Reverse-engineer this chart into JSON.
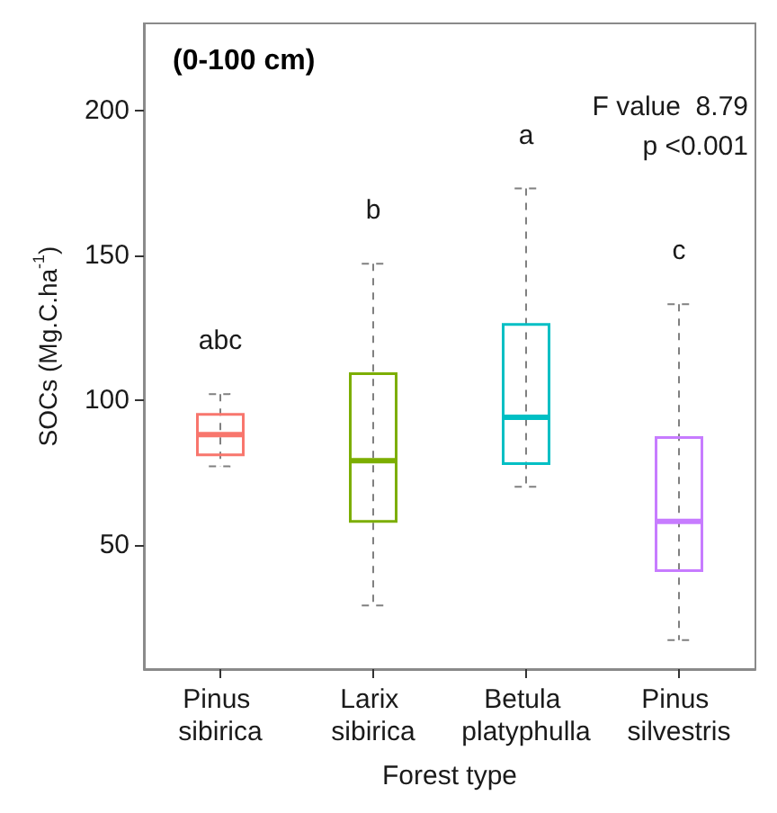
{
  "chart_data": {
    "type": "box",
    "title": "(0-100 cm)",
    "xlabel": "Forest type",
    "ylabel": "SOCs (Mg.C.ha$^{-1}$)",
    "categories": [
      "Pinus sibirica",
      "Larix sibirica",
      "Betula platyphulla",
      "Pinus silvestris"
    ],
    "colors": [
      "#f8766d",
      "#7cae00",
      "#00bfc4",
      "#c77cff"
    ],
    "boxes": [
      {
        "low": 77,
        "q1": 81,
        "median": 88,
        "q3": 95,
        "high": 102
      },
      {
        "low": 29,
        "q1": 58,
        "median": 79,
        "q3": 109,
        "high": 147
      },
      {
        "low": 70,
        "q1": 78,
        "median": 94,
        "q3": 126,
        "high": 173
      },
      {
        "low": 17,
        "q1": 41,
        "median": 58,
        "q3": 87,
        "high": 133
      }
    ],
    "ylim": [
      7,
      230
    ],
    "yticks": [
      50,
      100,
      150,
      200
    ],
    "grid": false,
    "annotations": [
      "abc",
      "b",
      "a",
      "c",
      "F value  8.79",
      "p <0.001"
    ]
  }
}
